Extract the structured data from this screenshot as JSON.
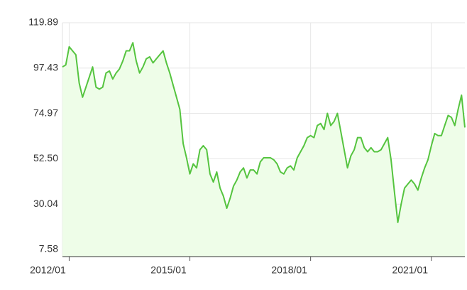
{
  "chart_data": {
    "type": "area",
    "x": [
      "2011/11",
      "2011/12",
      "2012/01",
      "2012/02",
      "2012/03",
      "2012/04",
      "2012/05",
      "2012/06",
      "2012/07",
      "2012/08",
      "2012/09",
      "2012/10",
      "2012/11",
      "2012/12",
      "2013/01",
      "2013/02",
      "2013/03",
      "2013/04",
      "2013/05",
      "2013/06",
      "2013/07",
      "2013/08",
      "2013/09",
      "2013/10",
      "2013/11",
      "2013/12",
      "2014/01",
      "2014/02",
      "2014/03",
      "2014/04",
      "2014/05",
      "2014/06",
      "2014/07",
      "2014/08",
      "2014/09",
      "2014/10",
      "2014/11",
      "2014/12",
      "2015/01",
      "2015/02",
      "2015/03",
      "2015/04",
      "2015/05",
      "2015/06",
      "2015/07",
      "2015/08",
      "2015/09",
      "2015/10",
      "2015/11",
      "2015/12",
      "2016/01",
      "2016/02",
      "2016/03",
      "2016/04",
      "2016/05",
      "2016/06",
      "2016/07",
      "2016/08",
      "2016/09",
      "2016/10",
      "2016/11",
      "2016/12",
      "2017/01",
      "2017/02",
      "2017/03",
      "2017/04",
      "2017/05",
      "2017/06",
      "2017/07",
      "2017/08",
      "2017/09",
      "2017/10",
      "2017/11",
      "2017/12",
      "2018/01",
      "2018/02",
      "2018/03",
      "2018/04",
      "2018/05",
      "2018/06",
      "2018/07",
      "2018/08",
      "2018/09",
      "2018/10",
      "2018/11",
      "2018/12",
      "2019/01",
      "2019/02",
      "2019/03",
      "2019/04",
      "2019/05",
      "2019/06",
      "2019/07",
      "2019/08",
      "2019/09",
      "2019/10",
      "2019/11",
      "2019/12",
      "2020/01",
      "2020/02",
      "2020/03",
      "2020/04",
      "2020/05",
      "2020/06",
      "2020/07",
      "2020/08",
      "2020/09",
      "2020/10",
      "2020/11",
      "2020/12",
      "2021/01",
      "2021/02",
      "2021/03",
      "2021/04",
      "2021/05",
      "2021/06",
      "2021/07",
      "2021/08",
      "2021/09",
      "2021/10",
      "2021/11"
    ],
    "values": [
      98,
      99,
      108,
      106,
      104,
      90,
      83,
      88,
      93,
      98,
      88,
      87,
      88,
      95,
      96,
      92,
      95,
      97,
      101,
      106,
      106,
      110,
      101,
      95,
      98,
      102,
      103,
      100,
      102,
      104,
      106,
      100,
      95,
      89,
      83,
      77,
      60,
      53,
      45,
      50,
      48,
      57,
      59,
      57,
      45,
      41,
      46,
      38,
      34,
      28,
      33,
      39,
      42,
      46,
      48,
      43,
      47,
      47,
      45,
      51,
      53,
      53,
      53,
      52,
      50,
      46,
      45,
      48,
      49,
      47,
      53,
      56,
      59,
      63,
      64,
      63,
      69,
      70,
      67,
      75,
      69,
      71,
      75,
      66,
      57,
      48,
      54,
      57,
      63,
      63,
      58,
      56,
      58,
      56,
      56,
      57,
      60,
      63,
      52,
      36,
      21,
      30,
      38,
      40,
      42,
      40,
      37,
      43,
      48,
      52,
      59,
      65,
      64,
      64,
      69,
      74,
      73,
      69,
      77,
      84,
      68
    ],
    "color": "#55c43f",
    "fill": "#eefde8",
    "xlim": [
      "2011/11",
      "2021/11"
    ],
    "xticks": [
      "2012/01",
      "2015/01",
      "2018/01",
      "2021/01"
    ],
    "ylim": [
      4.07,
      119.89
    ],
    "yticks": [
      7.58,
      30.04,
      {
        "value": 52.5,
        "label": "52.50"
      },
      74.97,
      97.43,
      119.89
    ],
    "grid": true
  }
}
